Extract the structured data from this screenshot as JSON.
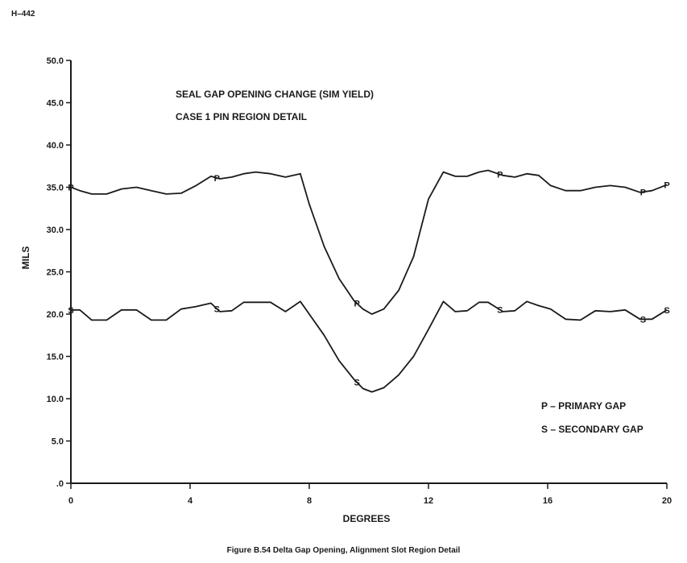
{
  "page": {
    "doc_id": "H–442",
    "caption": "Figure B.54  Delta Gap Opening, Alignment Slot Region Detail"
  },
  "chart_data": {
    "type": "line",
    "title": "SEAL GAP OPENING CHANGE (SIM YIELD)",
    "subtitle": "CASE 1 PIN REGION DETAIL",
    "xlabel": "DEGREES",
    "ylabel": "MILS",
    "xlim": [
      0,
      20
    ],
    "ylim": [
      0,
      50
    ],
    "x_ticks": [
      0,
      4,
      8,
      12,
      16,
      20
    ],
    "x_tick_labels": [
      "0",
      "4",
      "8",
      "12",
      "16",
      "20"
    ],
    "y_ticks": [
      0,
      5,
      10,
      15,
      20,
      25,
      30,
      35,
      40,
      45,
      50
    ],
    "y_tick_labels": [
      ".0",
      "5.0",
      "10.0",
      "15.0",
      "20.0",
      "25.0",
      "30.0",
      "35.0",
      "40.0",
      "45.0",
      "50.0"
    ],
    "grid": false,
    "legend": {
      "placement": "bottom-right",
      "entries": [
        "P – PRIMARY GAP",
        "S – SECONDARY GAP"
      ]
    },
    "series": [
      {
        "marker": "P",
        "x": [
          0,
          0.3,
          0.7,
          1.2,
          1.7,
          2.2,
          2.7,
          3.2,
          3.7,
          4.2,
          4.7,
          5.0,
          5.4,
          5.8,
          6.2,
          6.7,
          7.2,
          7.7,
          8.0,
          8.5,
          9.0,
          9.5,
          9.8,
          10.1,
          10.5,
          11.0,
          11.5,
          12.0,
          12.5,
          12.9,
          13.3,
          13.7,
          14.0,
          14.5,
          14.9,
          15.3,
          15.7,
          16.1,
          16.6,
          17.1,
          17.6,
          18.1,
          18.6,
          19.1,
          19.5,
          20.0
        ],
        "y": [
          35.0,
          34.6,
          34.2,
          34.2,
          34.8,
          35.0,
          34.6,
          34.2,
          34.3,
          35.2,
          36.3,
          36.0,
          36.2,
          36.6,
          36.8,
          36.6,
          36.2,
          36.6,
          33.0,
          28.0,
          24.2,
          21.6,
          20.6,
          20.0,
          20.6,
          22.8,
          26.8,
          33.6,
          36.8,
          36.3,
          36.3,
          36.8,
          37.0,
          36.4,
          36.2,
          36.6,
          36.4,
          35.2,
          34.6,
          34.6,
          35.0,
          35.2,
          35.0,
          34.4,
          34.6,
          35.3
        ],
        "markers_at_x": [
          0,
          4.9,
          9.6,
          14.4,
          19.2,
          20.0
        ]
      },
      {
        "marker": "S",
        "x": [
          0,
          0.3,
          0.7,
          1.2,
          1.7,
          2.2,
          2.7,
          3.2,
          3.7,
          4.2,
          4.7,
          5.0,
          5.4,
          5.8,
          6.2,
          6.7,
          7.2,
          7.7,
          8.0,
          8.5,
          9.0,
          9.5,
          9.8,
          10.1,
          10.5,
          11.0,
          11.5,
          12.0,
          12.5,
          12.9,
          13.3,
          13.7,
          14.0,
          14.5,
          14.9,
          15.3,
          15.7,
          16.1,
          16.6,
          17.1,
          17.6,
          18.1,
          18.6,
          19.1,
          19.5,
          20.0
        ],
        "y": [
          20.5,
          20.5,
          19.3,
          19.3,
          20.5,
          20.5,
          19.3,
          19.3,
          20.6,
          20.9,
          21.3,
          20.3,
          20.4,
          21.4,
          21.4,
          21.4,
          20.3,
          21.5,
          20.0,
          17.5,
          14.5,
          12.3,
          11.2,
          10.8,
          11.3,
          12.8,
          15.0,
          18.2,
          21.5,
          20.3,
          20.4,
          21.4,
          21.4,
          20.3,
          20.4,
          21.5,
          21.0,
          20.6,
          19.4,
          19.3,
          20.4,
          20.3,
          20.5,
          19.4,
          19.4,
          20.5
        ],
        "markers_at_x": [
          0,
          4.9,
          9.6,
          14.4,
          19.2,
          20.0
        ]
      }
    ]
  }
}
